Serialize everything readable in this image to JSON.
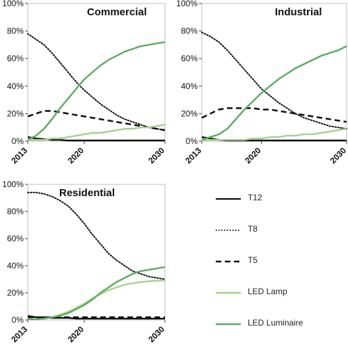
{
  "chart_data": [
    {
      "type": "line",
      "title": "Commercial",
      "x": [
        2013,
        2014,
        2015,
        2016,
        2017,
        2018,
        2019,
        2020,
        2021,
        2022,
        2023,
        2024,
        2025,
        2026,
        2027,
        2028,
        2029,
        2030
      ],
      "xticks": [
        2013,
        2020,
        2030
      ],
      "yticks": [
        "0%",
        "20%",
        "40%",
        "60%",
        "80%",
        "100%"
      ],
      "ylim": [
        0,
        100
      ],
      "series": [
        {
          "name": "T12",
          "values": [
            3,
            2,
            1.5,
            1,
            1,
            0.5,
            0.5,
            0.5,
            0.5,
            0.5,
            0.5,
            0.5,
            0.5,
            0.5,
            0.5,
            0.5,
            0.5,
            0.5
          ]
        },
        {
          "name": "T8",
          "values": [
            78,
            74,
            70,
            64,
            57,
            50,
            43,
            37,
            32,
            27,
            23,
            19,
            16,
            14,
            12,
            10,
            9,
            8
          ]
        },
        {
          "name": "T5",
          "values": [
            18,
            20,
            22,
            22,
            21,
            20,
            19,
            18,
            17,
            16,
            15,
            14,
            13,
            12,
            11,
            10,
            9,
            8
          ]
        },
        {
          "name": "LED Lamp",
          "values": [
            1,
            1,
            1,
            2,
            2,
            3,
            4,
            5,
            6,
            6,
            7,
            8,
            9,
            9,
            10,
            10,
            11,
            12
          ]
        },
        {
          "name": "LED Luminaire",
          "values": [
            1,
            4,
            9,
            16,
            24,
            31,
            38,
            45,
            50,
            55,
            59,
            62,
            65,
            67,
            69,
            70,
            71,
            72
          ]
        }
      ]
    },
    {
      "type": "line",
      "title": "Industrial",
      "x": [
        2013,
        2014,
        2015,
        2016,
        2017,
        2018,
        2019,
        2020,
        2021,
        2022,
        2023,
        2024,
        2025,
        2026,
        2027,
        2028,
        2029,
        2030
      ],
      "xticks": [
        2013,
        2020,
        2030
      ],
      "yticks": [
        "0%",
        "20%",
        "40%",
        "60%",
        "80%",
        "100%"
      ],
      "ylim": [
        0,
        100
      ],
      "series": [
        {
          "name": "T12",
          "values": [
            3,
            2,
            1,
            0.5,
            0.5,
            0.5,
            0.5,
            0.5,
            0.5,
            0.5,
            0.5,
            0.5,
            0.5,
            0.5,
            0.5,
            0.5,
            0.5,
            0.5
          ]
        },
        {
          "name": "T8",
          "values": [
            79,
            76,
            72,
            66,
            59,
            52,
            45,
            38,
            33,
            28,
            24,
            20,
            17,
            15,
            13,
            11,
            10,
            9
          ]
        },
        {
          "name": "T5",
          "values": [
            17,
            20,
            23,
            24,
            24,
            24,
            24,
            23,
            23,
            22,
            21,
            20,
            19,
            18,
            17,
            16,
            15,
            14
          ]
        },
        {
          "name": "LED Lamp",
          "values": [
            1,
            1,
            1,
            1,
            1,
            1,
            2,
            2,
            3,
            3,
            4,
            4,
            5,
            5,
            6,
            7,
            8,
            9
          ]
        },
        {
          "name": "LED Luminaire",
          "values": [
            1,
            3,
            5,
            9,
            16,
            23,
            29,
            35,
            40,
            45,
            49,
            53,
            56,
            59,
            62,
            64,
            66,
            69
          ]
        }
      ]
    },
    {
      "type": "line",
      "title": "Residential",
      "x": [
        2013,
        2014,
        2015,
        2016,
        2017,
        2018,
        2019,
        2020,
        2021,
        2022,
        2023,
        2024,
        2025,
        2026,
        2027,
        2028,
        2029,
        2030
      ],
      "xticks": [
        2013,
        2020,
        2030
      ],
      "yticks": [
        "0%",
        "20%",
        "40%",
        "60%",
        "80%",
        "100%"
      ],
      "ylim": [
        0,
        100
      ],
      "series": [
        {
          "name": "T12",
          "values": [
            3,
            2,
            2,
            1.5,
            1.5,
            1.5,
            1,
            1,
            1,
            1,
            1,
            1,
            1,
            1,
            1,
            1,
            1,
            1
          ]
        },
        {
          "name": "T8",
          "values": [
            94,
            94,
            93,
            91,
            88,
            84,
            78,
            71,
            63,
            56,
            49,
            44,
            40,
            36,
            34,
            32,
            31,
            30
          ]
        },
        {
          "name": "T5",
          "values": [
            2,
            2,
            2,
            2,
            2,
            2,
            2,
            2,
            2,
            2,
            2,
            2,
            2,
            2,
            2,
            2,
            2,
            2
          ]
        },
        {
          "name": "LED Lamp",
          "values": [
            0.5,
            0.5,
            1,
            2,
            4,
            6,
            9,
            12,
            16,
            19,
            22,
            24,
            26,
            27,
            28,
            28.5,
            29,
            29
          ]
        },
        {
          "name": "LED Luminaire",
          "values": [
            0.5,
            0.5,
            1,
            2,
            3,
            5,
            8,
            11,
            15,
            20,
            24,
            28,
            31,
            34,
            36,
            37,
            38,
            39
          ]
        }
      ]
    }
  ],
  "legend": [
    {
      "name": "T12",
      "color": "#111111",
      "dash": "solid"
    },
    {
      "name": "T8",
      "color": "#111111",
      "dash": "dotted"
    },
    {
      "name": "T5",
      "color": "#111111",
      "dash": "dashed"
    },
    {
      "name": "LED Lamp",
      "color": "#a8d08d",
      "dash": "solid"
    },
    {
      "name": "LED Luminaire",
      "color": "#5bab5e",
      "dash": "solid"
    }
  ],
  "style": {
    "T12": {
      "color": "#111111",
      "dash": "solid"
    },
    "T8": {
      "color": "#111111",
      "dash": "dotted"
    },
    "T5": {
      "color": "#111111",
      "dash": "dashed"
    },
    "LED Lamp": {
      "color": "#a8d08d",
      "dash": "solid"
    },
    "LED Luminaire": {
      "color": "#5bab5e",
      "dash": "solid"
    }
  }
}
